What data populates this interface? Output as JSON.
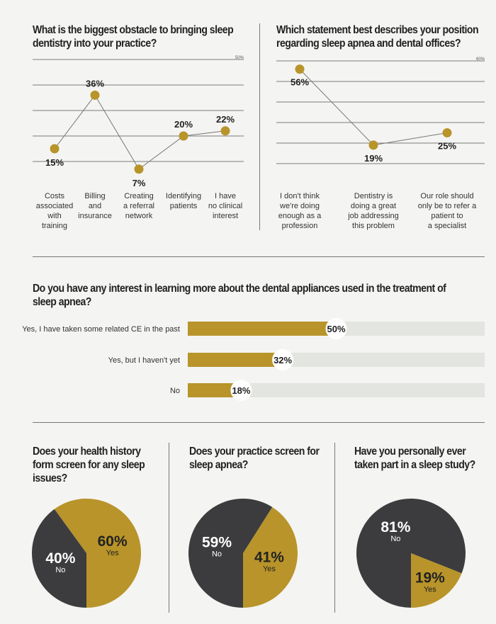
{
  "chart_data": [
    {
      "type": "line",
      "title": "What is the biggest obstacle to bringing sleep dentistry into your practice?",
      "categories": [
        [
          "Costs",
          "associated",
          "with",
          "training"
        ],
        [
          "Billing",
          "and",
          "insurance"
        ],
        [
          "Creating",
          "a referral",
          "network"
        ],
        [
          "Identifying",
          "patients"
        ],
        [
          "I have",
          "no clinical",
          "interest"
        ]
      ],
      "values": [
        15,
        36,
        7,
        20,
        22
      ],
      "value_labels": [
        "15%",
        "36%",
        "7%",
        "20%",
        "22%"
      ],
      "ylim": [
        0,
        50
      ],
      "ymax_label": "50%",
      "grid": true,
      "color": "#b8942a"
    },
    {
      "type": "line",
      "title": "Which statement best describes your position regarding sleep apnea and dental offices?",
      "categories": [
        [
          "I don't think",
          "we're doing",
          "enough as a",
          "profession"
        ],
        [
          "Dentistry is",
          "doing a great",
          "job addressing",
          "this problem"
        ],
        [
          "Our role should",
          "only be to refer a",
          "patient to",
          "a specialist"
        ]
      ],
      "values": [
        56,
        19,
        25
      ],
      "value_labels": [
        "56%",
        "19%",
        "25%"
      ],
      "ylim": [
        0,
        60
      ],
      "ymax_label": "60%",
      "grid": true,
      "color": "#b8942a"
    },
    {
      "type": "bar",
      "orientation": "horizontal",
      "title": "Do you have any interest in learning more about the dental appliances used in the treatment of sleep apnea?",
      "categories": [
        "Yes, I have taken some related CE in the past",
        "Yes, but I haven't yet",
        "No"
      ],
      "values": [
        50,
        32,
        18
      ],
      "value_labels": [
        "50%",
        "32%",
        "18%"
      ],
      "xlim": [
        0,
        100
      ],
      "color": "#b8942a",
      "track_color": "#e3e5e1"
    },
    {
      "type": "pie",
      "title": "Does your health history form screen for any sleep issues?",
      "slices": [
        {
          "label": "Yes",
          "value": 60,
          "pct": "60%",
          "color": "#b8942a"
        },
        {
          "label": "No",
          "value": 40,
          "pct": "40%",
          "color": "#3c3c3e"
        }
      ]
    },
    {
      "type": "pie",
      "title": "Does your practice screen for sleep apnea?",
      "slices": [
        {
          "label": "Yes",
          "value": 41,
          "pct": "41%",
          "color": "#b8942a"
        },
        {
          "label": "No",
          "value": 59,
          "pct": "59%",
          "color": "#3c3c3e"
        }
      ]
    },
    {
      "type": "pie",
      "title": "Have you personally ever taken part in a sleep study?",
      "slices": [
        {
          "label": "Yes",
          "value": 19,
          "pct": "19%",
          "color": "#b8942a"
        },
        {
          "label": "No",
          "value": 81,
          "pct": "81%",
          "color": "#3c3c3e"
        }
      ]
    }
  ]
}
